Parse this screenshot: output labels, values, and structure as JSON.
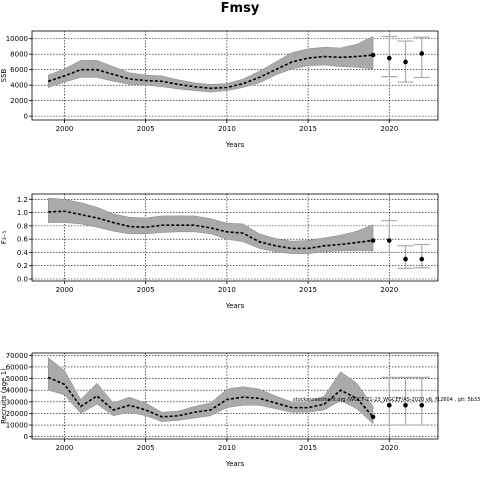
{
  "title": "Fmsy",
  "annotation": "stockassessment.org (WGCF-21-23_WGCEF/AS-2020 v6, f12604 , git: 5b33",
  "chart_data": [
    {
      "type": "line",
      "xlabel": "Years",
      "ylabel": "SSB",
      "xlim": [
        1998,
        2023
      ],
      "ylim": [
        -500,
        11000
      ],
      "xticks": [
        2000,
        2005,
        2010,
        2015,
        2020
      ],
      "yticks": [
        0,
        2000,
        4000,
        6000,
        8000,
        10000
      ],
      "grid": true,
      "series": [
        {
          "x": [
            1999,
            2000,
            2001,
            2002,
            2003,
            2004,
            2005,
            2006,
            2007,
            2008,
            2009,
            2010,
            2011,
            2012,
            2013,
            2014,
            2015,
            2016,
            2017,
            2018,
            2019
          ],
          "y": [
            4500,
            5200,
            6000,
            6000,
            5400,
            4800,
            4600,
            4500,
            4100,
            3800,
            3600,
            3700,
            4200,
            5000,
            6000,
            7000,
            7500,
            7700,
            7600,
            7700,
            7900
          ],
          "lower": [
            3700,
            4400,
            5000,
            5000,
            4500,
            4100,
            4000,
            3800,
            3500,
            3300,
            3100,
            3300,
            3700,
            4300,
            5300,
            6100,
            6500,
            6600,
            6400,
            6300,
            6100
          ],
          "upper": [
            5300,
            6100,
            7200,
            7200,
            6400,
            5600,
            5300,
            5200,
            4700,
            4300,
            4100,
            4200,
            4800,
            5800,
            7000,
            8200,
            8700,
            8900,
            8800,
            9300,
            10300
          ]
        }
      ],
      "forecast": {
        "x": [
          2019,
          2020,
          2021,
          2022
        ],
        "y": [
          7900,
          7500,
          7000,
          8100
        ],
        "lower": [
          6200,
          5100,
          4400,
          5000
        ],
        "upper": [
          10300,
          10300,
          9700,
          10200
        ]
      }
    },
    {
      "type": "line",
      "xlabel": "Years",
      "ylabel": "F₃₋₅",
      "xlim": [
        1998,
        2023
      ],
      "ylim": [
        -0.03,
        1.28
      ],
      "xticks": [
        2000,
        2005,
        2010,
        2015,
        2020
      ],
      "yticks": [
        0.0,
        0.2,
        0.4,
        0.6,
        0.8,
        1.0,
        1.2
      ],
      "ytickLabels": [
        "0.0",
        "0.2",
        "0.4",
        "0.6",
        "0.8",
        "1.0",
        "1.2"
      ],
      "grid": true,
      "series": [
        {
          "x": [
            1999,
            2000,
            2001,
            2002,
            2003,
            2004,
            2005,
            2006,
            2007,
            2008,
            2009,
            2010,
            2011,
            2012,
            2013,
            2014,
            2015,
            2016,
            2017,
            2018,
            2019
          ],
          "y": [
            1.01,
            1.02,
            0.97,
            0.92,
            0.85,
            0.79,
            0.78,
            0.81,
            0.81,
            0.81,
            0.77,
            0.71,
            0.69,
            0.56,
            0.5,
            0.46,
            0.46,
            0.5,
            0.52,
            0.55,
            0.58
          ],
          "lower": [
            0.85,
            0.85,
            0.83,
            0.78,
            0.72,
            0.68,
            0.68,
            0.7,
            0.71,
            0.71,
            0.68,
            0.6,
            0.56,
            0.46,
            0.41,
            0.38,
            0.38,
            0.41,
            0.42,
            0.43,
            0.42
          ],
          "upper": [
            1.22,
            1.2,
            1.15,
            1.08,
            0.98,
            0.93,
            0.92,
            0.95,
            0.95,
            0.95,
            0.91,
            0.84,
            0.83,
            0.68,
            0.61,
            0.57,
            0.58,
            0.62,
            0.66,
            0.72,
            0.82
          ]
        }
      ],
      "forecast": {
        "x": [
          2019,
          2020,
          2021,
          2022
        ],
        "y": [
          0.58,
          0.58,
          0.3,
          0.3
        ],
        "lower": [
          0.42,
          0.4,
          0.16,
          0.17
        ],
        "upper": [
          0.82,
          0.88,
          0.5,
          0.52
        ]
      }
    },
    {
      "type": "line",
      "xlabel": "Years",
      "ylabel": "Recruits (age 1)",
      "xlim": [
        1998,
        2023
      ],
      "ylim": [
        -2000,
        72000
      ],
      "xticks": [
        2000,
        2005,
        2010,
        2015,
        2020
      ],
      "yticks": [
        0,
        10000,
        20000,
        30000,
        40000,
        50000,
        60000,
        70000
      ],
      "grid": true,
      "series": [
        {
          "x": [
            1999,
            2000,
            2001,
            2002,
            2003,
            2004,
            2005,
            2006,
            2007,
            2008,
            2009,
            2010,
            2011,
            2012,
            2013,
            2014,
            2015,
            2016,
            2017,
            2018,
            2019
          ],
          "y": [
            51000,
            45000,
            26000,
            35000,
            23000,
            27000,
            23000,
            17000,
            18000,
            21000,
            23000,
            32000,
            34000,
            33000,
            29000,
            25000,
            25000,
            28000,
            40000,
            33000,
            17000
          ],
          "lower": [
            40000,
            36000,
            20000,
            28000,
            18000,
            21000,
            18000,
            13000,
            14000,
            16000,
            18000,
            25000,
            27000,
            27000,
            24000,
            21000,
            21000,
            23000,
            31000,
            24000,
            11000
          ],
          "upper": [
            68000,
            57000,
            32000,
            46000,
            29000,
            34000,
            29000,
            21000,
            22000,
            26000,
            29000,
            41000,
            43000,
            41000,
            35000,
            30000,
            30000,
            35000,
            56000,
            46000,
            26000
          ]
        }
      ],
      "forecast": {
        "x": [
          2019,
          2020,
          2021,
          2022
        ],
        "y": [
          17000,
          27000,
          27000,
          27000
        ],
        "lower": [
          10000,
          10000,
          10000,
          10000
        ],
        "upper": [
          27000,
          51000,
          51000,
          51000
        ]
      }
    }
  ]
}
